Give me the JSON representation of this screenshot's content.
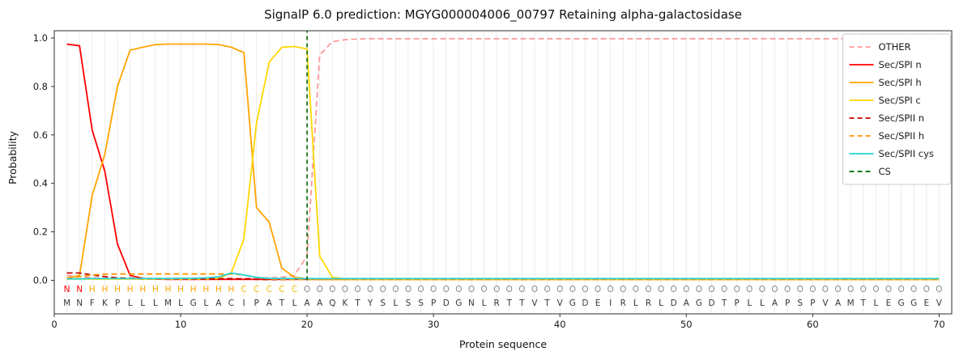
{
  "chart_data": {
    "type": "line",
    "title": "SignalP 6.0 prediction: MGYG000004006_00797 Retaining alpha-galactosidase",
    "xlabel": "Protein sequence",
    "ylabel": "Probability",
    "xticks": [
      0,
      10,
      20,
      30,
      40,
      50,
      60,
      70
    ],
    "yticks": [
      "0.0",
      "0.2",
      "0.4",
      "0.6",
      "0.8",
      "1.0"
    ],
    "xlim": [
      0,
      71
    ],
    "ylim": [
      0,
      1.05
    ],
    "grid": true,
    "legend_position": "upper right",
    "sequence": "MNFKPLLLMLGLACIPATLAAQKTYSLSSPDGNLRTTVTVGDEIRLRLDAGDTPLLAPSPVAMTLEGGEV",
    "sequence_color": "#3a3a3a",
    "regions": [
      {
        "label": "N",
        "start": 1,
        "end": 2
      },
      {
        "label": "H",
        "start": 3,
        "end": 14
      },
      {
        "label": "C",
        "start": 15,
        "end": 19
      },
      {
        "label": "O",
        "start": 20,
        "end": 70
      }
    ],
    "region_colors": {
      "N": "#ff0000",
      "H": "#ffa500",
      "C": "#f0c400",
      "O": "#8a8a8a"
    },
    "cs": {
      "label": "CS",
      "color": "#006400",
      "position": 20,
      "dashed": true
    },
    "series": [
      {
        "name": "OTHER",
        "color": "#ff9999",
        "dashed": true,
        "values": [
          0.02,
          0.015,
          0.01,
          0.008,
          0.008,
          0.008,
          0.008,
          0.008,
          0.008,
          0.008,
          0.008,
          0.008,
          0.008,
          0.008,
          0.008,
          0.01,
          0.01,
          0.012,
          0.02,
          0.1,
          0.93,
          0.985,
          0.993,
          0.996,
          0.997,
          0.997,
          0.997,
          0.997,
          0.997,
          0.997,
          0.997,
          0.997,
          0.997,
          0.997,
          0.997,
          0.997,
          0.997,
          0.997,
          0.997,
          0.997,
          0.997,
          0.997,
          0.997,
          0.997,
          0.997,
          0.997,
          0.997,
          0.997,
          0.997,
          0.997,
          0.997,
          0.997,
          0.997,
          0.997,
          0.997,
          0.997,
          0.997,
          0.997,
          0.997,
          0.997,
          0.997,
          0.997,
          0.997,
          0.997,
          0.997,
          0.997,
          0.997,
          0.997,
          0.997,
          0.997
        ]
      },
      {
        "name": "Sec/SPI n",
        "color": "#ff0000",
        "dashed": false,
        "values": [
          0.975,
          0.968,
          0.62,
          0.45,
          0.15,
          0.02,
          0.008,
          0.005,
          0.004,
          0.004,
          0.004,
          0.004,
          0.004,
          0.004,
          0.004,
          0.004,
          0.004,
          0.004,
          0.004,
          0.004,
          0.004,
          0.004,
          0.004,
          0.004,
          0.004,
          0.004,
          0.004,
          0.004,
          0.004,
          0.004,
          0.004,
          0.004,
          0.004,
          0.004,
          0.004,
          0.004,
          0.004,
          0.004,
          0.004,
          0.004,
          0.004,
          0.004,
          0.004,
          0.004,
          0.004,
          0.004,
          0.004,
          0.004,
          0.004,
          0.004,
          0.004,
          0.004,
          0.004,
          0.004,
          0.004,
          0.004,
          0.004,
          0.004,
          0.004,
          0.004,
          0.004,
          0.004,
          0.004,
          0.004,
          0.004,
          0.004,
          0.004,
          0.004,
          0.004,
          0.004
        ]
      },
      {
        "name": "Sec/SPI h",
        "color": "#ffa500",
        "dashed": false,
        "values": [
          0.008,
          0.02,
          0.35,
          0.52,
          0.8,
          0.95,
          0.962,
          0.973,
          0.975,
          0.975,
          0.975,
          0.975,
          0.973,
          0.962,
          0.94,
          0.3,
          0.24,
          0.05,
          0.012,
          0.006,
          0.004,
          0.003,
          0.003,
          0.003,
          0.003,
          0.003,
          0.003,
          0.003,
          0.003,
          0.003,
          0.003,
          0.003,
          0.003,
          0.003,
          0.003,
          0.003,
          0.003,
          0.003,
          0.003,
          0.003,
          0.003,
          0.003,
          0.003,
          0.003,
          0.003,
          0.003,
          0.003,
          0.003,
          0.003,
          0.003,
          0.003,
          0.003,
          0.003,
          0.003,
          0.003,
          0.003,
          0.003,
          0.003,
          0.003,
          0.003,
          0.003,
          0.003,
          0.003,
          0.003,
          0.003,
          0.003,
          0.003,
          0.003,
          0.003,
          0.003
        ]
      },
      {
        "name": "Sec/SPI c",
        "color": "#ffd700",
        "dashed": false,
        "values": [
          0.005,
          0.005,
          0.005,
          0.005,
          0.005,
          0.005,
          0.005,
          0.005,
          0.005,
          0.005,
          0.005,
          0.006,
          0.008,
          0.03,
          0.17,
          0.65,
          0.9,
          0.962,
          0.965,
          0.955,
          0.1,
          0.012,
          0.006,
          0.004,
          0.004,
          0.004,
          0.004,
          0.004,
          0.004,
          0.004,
          0.004,
          0.004,
          0.004,
          0.004,
          0.004,
          0.004,
          0.004,
          0.004,
          0.004,
          0.004,
          0.004,
          0.004,
          0.004,
          0.004,
          0.004,
          0.004,
          0.004,
          0.004,
          0.004,
          0.004,
          0.004,
          0.004,
          0.004,
          0.004,
          0.004,
          0.004,
          0.004,
          0.004,
          0.004,
          0.004,
          0.004,
          0.004,
          0.004,
          0.004,
          0.004,
          0.004,
          0.004,
          0.004,
          0.004,
          0.004
        ]
      },
      {
        "name": "Sec/SPII n",
        "color": "#c00000",
        "dashed": true,
        "values": [
          0.03,
          0.03,
          0.022,
          0.015,
          0.01,
          0.008,
          0.007,
          0.006,
          0.006,
          0.006,
          0.006,
          0.006,
          0.006,
          0.006,
          0.005,
          0.004,
          0.003,
          0.003,
          0.003,
          0.003,
          0.003,
          0.003,
          0.003,
          0.003,
          0.003,
          0.003,
          0.003,
          0.003,
          0.003,
          0.003,
          0.003,
          0.003,
          0.003,
          0.003,
          0.003,
          0.003,
          0.003,
          0.003,
          0.003,
          0.003,
          0.003,
          0.003,
          0.003,
          0.003,
          0.003,
          0.003,
          0.003,
          0.003,
          0.003,
          0.003,
          0.003,
          0.003,
          0.003,
          0.003,
          0.003,
          0.003,
          0.003,
          0.003,
          0.003,
          0.003,
          0.003,
          0.003,
          0.003,
          0.003,
          0.003,
          0.003,
          0.003,
          0.003,
          0.003,
          0.003
        ]
      },
      {
        "name": "Sec/SPII h",
        "color": "#ff9500",
        "dashed": true,
        "values": [
          0.01,
          0.015,
          0.022,
          0.025,
          0.026,
          0.026,
          0.026,
          0.026,
          0.026,
          0.026,
          0.026,
          0.026,
          0.026,
          0.026,
          0.022,
          0.012,
          0.006,
          0.004,
          0.003,
          0.003,
          0.003,
          0.003,
          0.003,
          0.003,
          0.003,
          0.003,
          0.003,
          0.003,
          0.003,
          0.003,
          0.003,
          0.003,
          0.003,
          0.003,
          0.003,
          0.003,
          0.003,
          0.003,
          0.003,
          0.003,
          0.003,
          0.003,
          0.003,
          0.003,
          0.003,
          0.003,
          0.003,
          0.003,
          0.003,
          0.003,
          0.003,
          0.003,
          0.003,
          0.003,
          0.003,
          0.003,
          0.003,
          0.003,
          0.003,
          0.003,
          0.003,
          0.003,
          0.003,
          0.003,
          0.003,
          0.003,
          0.003,
          0.003,
          0.003,
          0.003
        ]
      },
      {
        "name": "Sec/SPII cys",
        "color": "#20d5d5",
        "dashed": false,
        "values": [
          0.006,
          0.006,
          0.007,
          0.007,
          0.007,
          0.007,
          0.007,
          0.007,
          0.007,
          0.008,
          0.008,
          0.01,
          0.014,
          0.03,
          0.022,
          0.012,
          0.008,
          0.007,
          0.007,
          0.007,
          0.007,
          0.007,
          0.007,
          0.007,
          0.007,
          0.007,
          0.007,
          0.007,
          0.007,
          0.007,
          0.007,
          0.007,
          0.007,
          0.007,
          0.007,
          0.007,
          0.007,
          0.007,
          0.007,
          0.007,
          0.007,
          0.007,
          0.007,
          0.007,
          0.007,
          0.007,
          0.007,
          0.007,
          0.007,
          0.007,
          0.007,
          0.007,
          0.007,
          0.007,
          0.007,
          0.007,
          0.007,
          0.007,
          0.007,
          0.007,
          0.007,
          0.007,
          0.007,
          0.007,
          0.007,
          0.007,
          0.007,
          0.007,
          0.007,
          0.007
        ]
      }
    ]
  }
}
